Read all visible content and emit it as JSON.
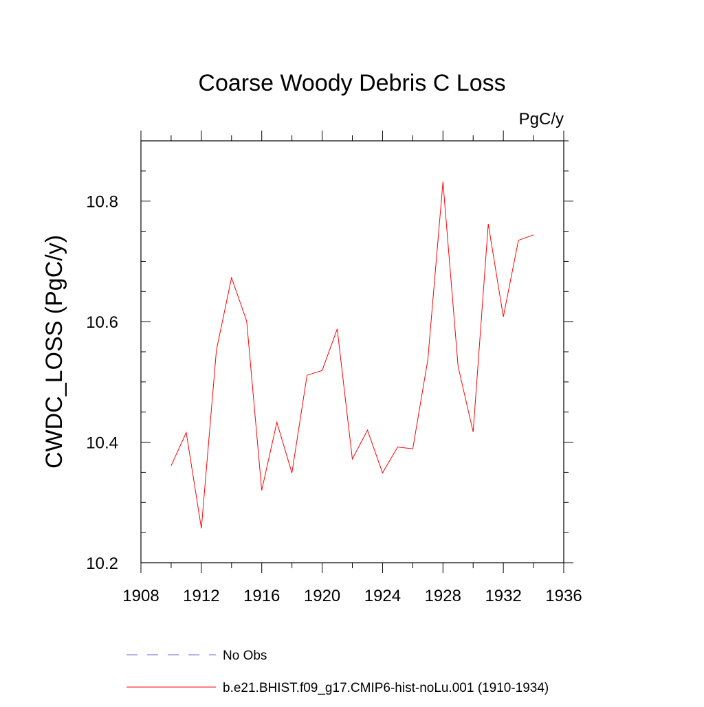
{
  "chart_data": {
    "type": "line",
    "title": "Coarse Woody Debris C Loss",
    "units": "PgC/y",
    "ylabel": "CWDC_LOSS  (PgC/y)",
    "xlabel": "",
    "xlim": [
      1908,
      1936
    ],
    "ylim": [
      10.2,
      10.9
    ],
    "xticks": [
      1908,
      1912,
      1916,
      1920,
      1924,
      1928,
      1932,
      1936
    ],
    "xtick_labels": [
      "1908",
      "1912",
      "1916",
      "1920",
      "1924",
      "1928",
      "1932",
      "1936"
    ],
    "yticks": [
      10.2,
      10.4,
      10.6,
      10.8
    ],
    "ytick_labels": [
      "10.2",
      "10.4",
      "10.6",
      "10.8"
    ],
    "grid": false,
    "series": [
      {
        "name": "b.e21.BHIST.f09_g17.CMIP6-hist-noLu.001 (1910-1934)",
        "color": "#ff0000",
        "x": [
          1910,
          1911,
          1912,
          1913,
          1914,
          1915,
          1916,
          1917,
          1918,
          1919,
          1920,
          1921,
          1922,
          1923,
          1924,
          1925,
          1926,
          1927,
          1928,
          1929,
          1930,
          1931,
          1932,
          1933,
          1934
        ],
        "values": [
          10.361,
          10.416,
          10.257,
          10.553,
          10.673,
          10.601,
          10.32,
          10.433,
          10.349,
          10.511,
          10.519,
          10.588,
          10.372,
          10.42,
          10.349,
          10.392,
          10.389,
          10.537,
          10.832,
          10.526,
          10.417,
          10.762,
          10.608,
          10.735,
          10.744
        ]
      }
    ],
    "legend": [
      {
        "label": "No Obs",
        "style": "dashed",
        "color": "#6a6ad8"
      },
      {
        "label": "b.e21.BHIST.f09_g17.CMIP6-hist-noLu.001 (1910-1934)",
        "style": "solid",
        "color": "#ff0000"
      }
    ]
  }
}
